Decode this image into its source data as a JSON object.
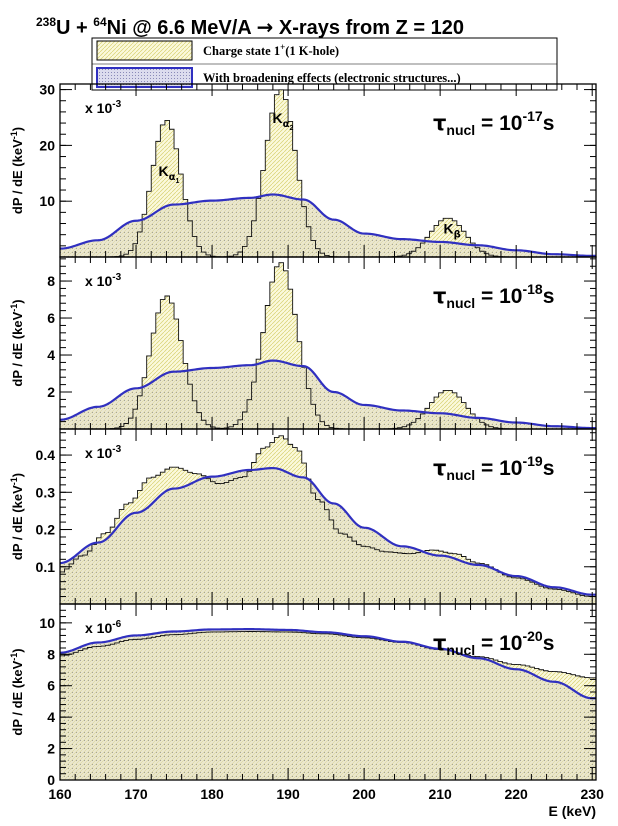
{
  "title": {
    "iso1_mass": "238",
    "iso1_sym": "U + ",
    "iso2_mass": "64",
    "iso2_sym": "Ni @ 6.6 MeV/A ",
    "arrow": "→",
    "rest": " X-rays from Z = 120"
  },
  "legend": {
    "entry1": "Charge state 1",
    "entry1_sup": "+",
    "entry1_rest": "(1 K-hole)",
    "entry2": "With broadening effects (electronic structures...)"
  },
  "colors": {
    "hist_fill": "#f5f2c8",
    "hist_line": "#111111",
    "broad_line": "#3030c0",
    "broad_fill": "#c8c8e4"
  },
  "chart_data": [
    {
      "type": "area",
      "panel_label": {
        "tau": "τ",
        "sub": "nucl",
        "eq": " = 10",
        "exp": "-17",
        "unit": "s"
      },
      "multiplier": {
        "base": "x 10",
        "exp": "-3"
      },
      "ylabel": {
        "main": "dP / dE  (keV",
        "exp": "-1",
        "close": ")"
      },
      "yticks": [
        10,
        20,
        30
      ],
      "ylim": [
        0,
        31
      ],
      "peak_labels": [
        {
          "base": "K",
          "sub": "α",
          "subsub": "1",
          "x": 174,
          "y": 14.5
        },
        {
          "base": "K",
          "sub": "α",
          "subsub": "2",
          "x": 189,
          "y": 24
        },
        {
          "base": "K",
          "sub": "β",
          "subsub": "",
          "x": 211.5,
          "y": 4.2
        }
      ],
      "peaks": [
        {
          "center": 174.0,
          "width": 1.9,
          "height": 24.5
        },
        {
          "center": 189.0,
          "width": 2.0,
          "height": 30.0
        },
        {
          "center": 211.0,
          "width": 2.3,
          "height": 7.0
        }
      ],
      "broad": {
        "x": [
          160,
          165,
          170,
          175,
          180,
          185,
          188,
          192,
          196,
          200,
          205,
          210,
          215,
          220,
          225,
          230
        ],
        "y": [
          1.5,
          3.0,
          6.5,
          9.4,
          10.1,
          10.6,
          11.2,
          10.3,
          6.7,
          4.2,
          3.2,
          2.7,
          2.1,
          1.2,
          0.5,
          0.2
        ]
      }
    },
    {
      "type": "area",
      "panel_label": {
        "tau": "τ",
        "sub": "nucl",
        "eq": " = 10",
        "exp": "-18",
        "unit": "s"
      },
      "multiplier": {
        "base": "x 10",
        "exp": "-3"
      },
      "ylabel": {
        "main": "dP / dE  (keV",
        "exp": "-1",
        "close": ")"
      },
      "yticks": [
        2,
        4,
        6,
        8
      ],
      "ylim": [
        0,
        9.3
      ],
      "peaks": [
        {
          "center": 174.0,
          "width": 2.1,
          "height": 7.2
        },
        {
          "center": 189.0,
          "width": 2.2,
          "height": 9.0
        },
        {
          "center": 211.0,
          "width": 2.4,
          "height": 2.1
        }
      ],
      "broad": {
        "x": [
          160,
          165,
          170,
          175,
          180,
          185,
          188,
          192,
          196,
          200,
          205,
          210,
          215,
          220,
          225,
          230
        ],
        "y": [
          0.5,
          1.2,
          2.2,
          3.1,
          3.3,
          3.45,
          3.7,
          3.4,
          2.0,
          1.3,
          1.0,
          0.85,
          0.6,
          0.35,
          0.15,
          0.05
        ]
      }
    },
    {
      "type": "area",
      "panel_label": {
        "tau": "τ",
        "sub": "nucl",
        "eq": " = 10",
        "exp": "-19",
        "unit": "s"
      },
      "multiplier": {
        "base": "x 10",
        "exp": "-3"
      },
      "ylabel": {
        "main": "dP / dE  (keV",
        "exp": "-1",
        "close": ")"
      },
      "yticks": [
        0.1,
        0.2,
        0.3,
        0.4
      ],
      "ylim": [
        0,
        0.47
      ],
      "hist": {
        "x": [
          160,
          163,
          166,
          169,
          172,
          175,
          178,
          181,
          184,
          187,
          189,
          191,
          194,
          197,
          200,
          203,
          206,
          209,
          212,
          215,
          220,
          225,
          230
        ],
        "y": [
          0.085,
          0.13,
          0.19,
          0.27,
          0.34,
          0.368,
          0.35,
          0.323,
          0.34,
          0.42,
          0.452,
          0.42,
          0.28,
          0.19,
          0.155,
          0.14,
          0.135,
          0.145,
          0.135,
          0.11,
          0.07,
          0.04,
          0.02
        ]
      },
      "broad": {
        "x": [
          160,
          165,
          170,
          175,
          180,
          185,
          188,
          192,
          196,
          200,
          205,
          210,
          215,
          220,
          225,
          230
        ],
        "y": [
          0.11,
          0.165,
          0.245,
          0.31,
          0.342,
          0.36,
          0.365,
          0.34,
          0.27,
          0.205,
          0.155,
          0.13,
          0.105,
          0.075,
          0.045,
          0.025
        ]
      }
    },
    {
      "type": "area",
      "panel_label": {
        "tau": "τ",
        "sub": "nucl",
        "eq": " = 10",
        "exp": "-20",
        "unit": "s"
      },
      "multiplier": {
        "base": "x 10",
        "exp": "-6"
      },
      "ylabel": {
        "main": "dP / dE  (keV",
        "exp": "-1",
        "close": ")"
      },
      "yticks": [
        0,
        2,
        4,
        6,
        8,
        10
      ],
      "ylim": [
        0,
        11.2
      ],
      "xlabel": "E (keV)",
      "xticks": [
        160,
        170,
        180,
        190,
        200,
        210,
        220,
        230
      ],
      "xlim": [
        160,
        230.5
      ],
      "hist": {
        "x": [
          160,
          165,
          170,
          175,
          180,
          185,
          190,
          195,
          200,
          205,
          210,
          215,
          220,
          225,
          230
        ],
        "y": [
          7.9,
          8.5,
          8.95,
          9.25,
          9.42,
          9.45,
          9.42,
          9.3,
          9.05,
          8.75,
          8.3,
          7.85,
          7.35,
          6.9,
          6.5
        ]
      },
      "broad": {
        "x": [
          160,
          165,
          170,
          175,
          180,
          185,
          190,
          195,
          200,
          205,
          210,
          215,
          220,
          225,
          230
        ],
        "y": [
          8.1,
          8.75,
          9.2,
          9.45,
          9.58,
          9.6,
          9.55,
          9.4,
          9.15,
          8.8,
          8.35,
          7.75,
          7.05,
          6.25,
          5.2
        ]
      }
    }
  ]
}
